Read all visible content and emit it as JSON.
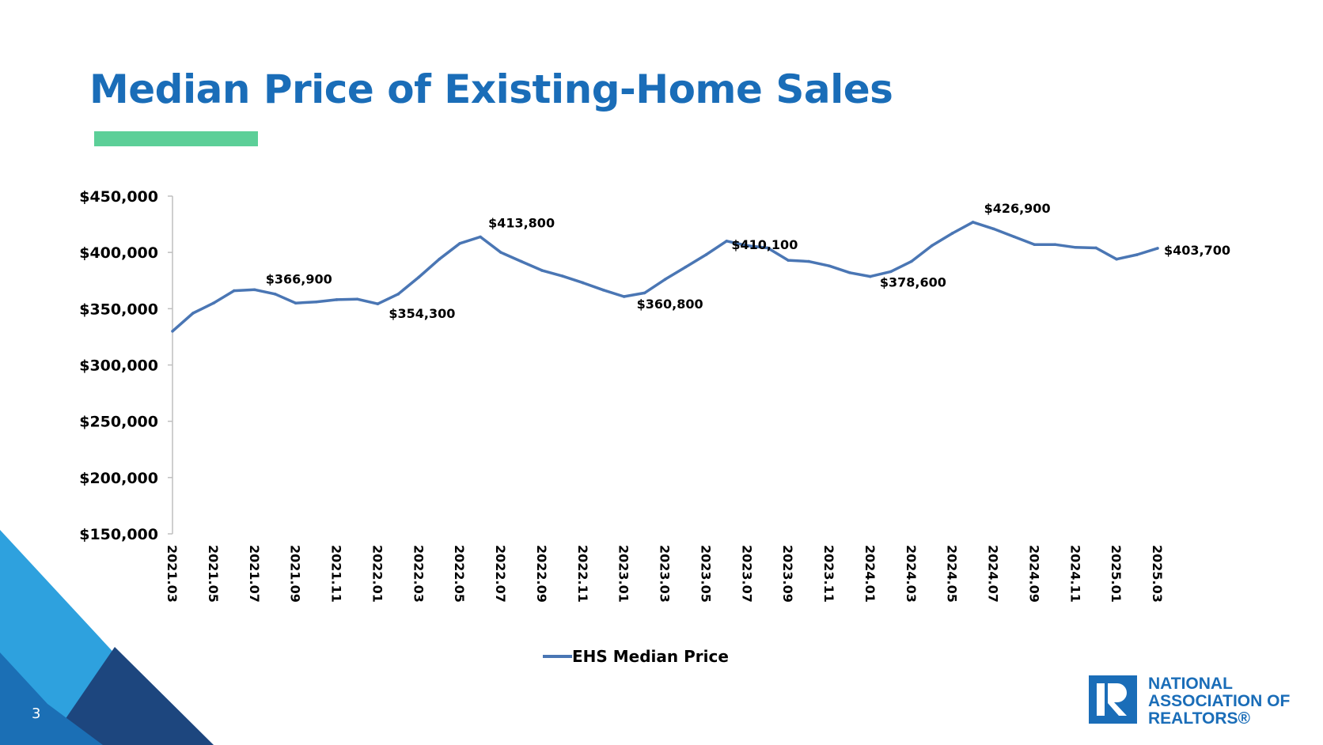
{
  "slide": {
    "title": "Median Price of Existing-Home Sales",
    "page_number": "3",
    "colors": {
      "title": "#1a6db8",
      "accent_bar": "#5ccf98",
      "line": "#4a76b4",
      "corner_light": "#2ea1de",
      "corner_mid": "#1b6fb5",
      "corner_dark": "#1d467e",
      "logo": "#1a6db8"
    }
  },
  "logo": {
    "icon": "realtor-r-icon",
    "line1": "NATIONAL",
    "line2": "ASSOCIATION OF",
    "line3": "REALTORS®"
  },
  "chart_data": {
    "type": "line",
    "title": "",
    "xlabel": "",
    "ylabel": "",
    "ylim": [
      150000,
      450000
    ],
    "y_ticks": [
      150000,
      200000,
      250000,
      300000,
      350000,
      400000,
      450000
    ],
    "y_tick_labels": [
      "$150,000",
      "$200,000",
      "$250,000",
      "$300,000",
      "$350,000",
      "$400,000",
      "$450,000"
    ],
    "x": [
      "2021.03",
      "2021.04",
      "2021.05",
      "2021.06",
      "2021.07",
      "2021.08",
      "2021.09",
      "2021.10",
      "2021.11",
      "2021.12",
      "2022.01",
      "2022.02",
      "2022.03",
      "2022.04",
      "2022.05",
      "2022.06",
      "2022.07",
      "2022.08",
      "2022.09",
      "2022.10",
      "2022.11",
      "2022.12",
      "2023.01",
      "2023.02",
      "2023.03",
      "2023.04",
      "2023.05",
      "2023.06",
      "2023.07",
      "2023.08",
      "2023.09",
      "2023.10",
      "2023.11",
      "2023.12",
      "2024.01",
      "2024.02",
      "2024.03",
      "2024.04",
      "2024.05",
      "2024.06",
      "2024.07",
      "2024.08",
      "2024.09",
      "2024.10",
      "2024.11",
      "2024.12",
      "2025.01",
      "2025.02",
      "2025.03"
    ],
    "x_tick_labels": [
      "2021.03",
      "2021.05",
      "2021.07",
      "2021.09",
      "2021.11",
      "2022.01",
      "2022.03",
      "2022.05",
      "2022.07",
      "2022.09",
      "2022.11",
      "2023.01",
      "2023.03",
      "2023.05",
      "2023.07",
      "2023.09",
      "2023.11",
      "2024.01",
      "2024.03",
      "2024.05",
      "2024.07",
      "2024.09",
      "2024.11",
      "2025.01",
      "2025.03"
    ],
    "series": [
      {
        "name": "EHS Median Price",
        "values": [
          330000,
          346000,
          355000,
          366000,
          366900,
          363000,
          355000,
          356000,
          358000,
          358500,
          354300,
          363000,
          378000,
          394000,
          408000,
          413800,
          400000,
          392000,
          384000,
          379000,
          373000,
          366500,
          360800,
          364000,
          376000,
          387000,
          398000,
          410100,
          406000,
          404000,
          393000,
          392000,
          388000,
          382000,
          378600,
          383000,
          392000,
          406000,
          417000,
          426900,
          421000,
          414000,
          407000,
          407000,
          404500,
          404000,
          394000,
          398000,
          403700
        ]
      }
    ],
    "data_labels": [
      {
        "x": "2021.07",
        "text": "$366,900"
      },
      {
        "x": "2022.01",
        "text": "$354,300"
      },
      {
        "x": "2022.06",
        "text": "$413,800"
      },
      {
        "x": "2023.01",
        "text": "$360,800"
      },
      {
        "x": "2023.06",
        "text": "$410,100"
      },
      {
        "x": "2024.01",
        "text": "$378,600"
      },
      {
        "x": "2024.06",
        "text": "$426,900"
      },
      {
        "x": "2025.03",
        "text": "$403,700"
      }
    ],
    "legend": {
      "position": "bottom",
      "entries": [
        "EHS Median Price"
      ]
    },
    "grid": false
  }
}
